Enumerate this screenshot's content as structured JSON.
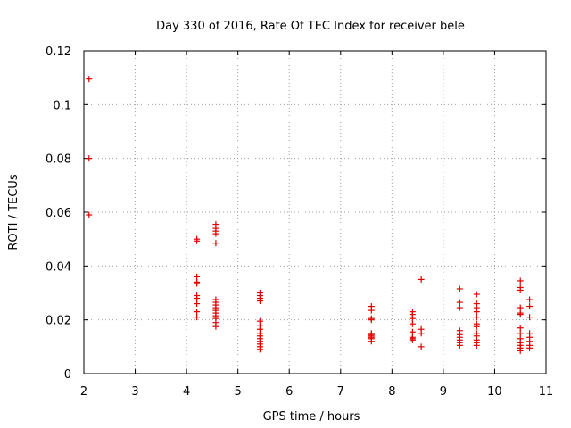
{
  "chart_data": {
    "type": "scatter",
    "title": "Day 330 of 2016, Rate Of TEC Index for receiver bele",
    "xlabel": "GPS time / hours",
    "ylabel": "ROTI / TECUs",
    "xlim": [
      2,
      11
    ],
    "ylim": [
      0,
      0.12
    ],
    "x_ticks": [
      "2",
      "3",
      "4",
      "5",
      "6",
      "7",
      "8",
      "9",
      "10",
      "11"
    ],
    "y_ticks": [
      "0",
      "0.02",
      "0.04",
      "0.06",
      "0.08",
      "0.1",
      "0.12"
    ],
    "grid": true,
    "marker": "+",
    "color": "#e00000",
    "series": [
      {
        "points": [
          [
            2.1,
            0.1095
          ],
          [
            2.1,
            0.08
          ],
          [
            2.1,
            0.059
          ],
          [
            4.2,
            0.05
          ],
          [
            4.2,
            0.0493
          ],
          [
            4.2,
            0.036
          ],
          [
            4.2,
            0.034
          ],
          [
            4.2,
            0.0335
          ],
          [
            4.2,
            0.029
          ],
          [
            4.2,
            0.028
          ],
          [
            4.2,
            0.026
          ],
          [
            4.2,
            0.023
          ],
          [
            4.2,
            0.021
          ],
          [
            4.57,
            0.0555
          ],
          [
            4.57,
            0.054
          ],
          [
            4.57,
            0.053
          ],
          [
            4.57,
            0.052
          ],
          [
            4.57,
            0.0485
          ],
          [
            4.57,
            0.0275
          ],
          [
            4.57,
            0.0265
          ],
          [
            4.57,
            0.0255
          ],
          [
            4.57,
            0.0245
          ],
          [
            4.57,
            0.0235
          ],
          [
            4.57,
            0.0225
          ],
          [
            4.57,
            0.0215
          ],
          [
            4.57,
            0.0205
          ],
          [
            4.57,
            0.019
          ],
          [
            4.57,
            0.0175
          ],
          [
            5.43,
            0.03
          ],
          [
            5.43,
            0.029
          ],
          [
            5.43,
            0.028
          ],
          [
            5.43,
            0.027
          ],
          [
            5.43,
            0.0195
          ],
          [
            5.43,
            0.018
          ],
          [
            5.43,
            0.0165
          ],
          [
            5.43,
            0.015
          ],
          [
            5.43,
            0.014
          ],
          [
            5.43,
            0.013
          ],
          [
            5.43,
            0.012
          ],
          [
            5.43,
            0.011
          ],
          [
            5.43,
            0.01
          ],
          [
            5.43,
            0.009
          ],
          [
            7.6,
            0.025
          ],
          [
            7.6,
            0.0235
          ],
          [
            7.6,
            0.0205
          ],
          [
            7.6,
            0.02
          ],
          [
            7.6,
            0.015
          ],
          [
            7.6,
            0.0145
          ],
          [
            7.6,
            0.014
          ],
          [
            7.6,
            0.0135
          ],
          [
            7.6,
            0.013
          ],
          [
            7.6,
            0.012
          ],
          [
            8.4,
            0.023
          ],
          [
            8.4,
            0.022
          ],
          [
            8.4,
            0.0205
          ],
          [
            8.4,
            0.0185
          ],
          [
            8.4,
            0.0155
          ],
          [
            8.4,
            0.0135
          ],
          [
            8.4,
            0.013
          ],
          [
            8.4,
            0.0125
          ],
          [
            8.57,
            0.035
          ],
          [
            8.57,
            0.0165
          ],
          [
            8.57,
            0.015
          ],
          [
            8.57,
            0.01
          ],
          [
            9.32,
            0.0315
          ],
          [
            9.32,
            0.0265
          ],
          [
            9.32,
            0.0245
          ],
          [
            9.32,
            0.016
          ],
          [
            9.32,
            0.0145
          ],
          [
            9.32,
            0.0135
          ],
          [
            9.32,
            0.0125
          ],
          [
            9.32,
            0.0115
          ],
          [
            9.32,
            0.0105
          ],
          [
            9.65,
            0.0295
          ],
          [
            9.65,
            0.026
          ],
          [
            9.65,
            0.0245
          ],
          [
            9.65,
            0.023
          ],
          [
            9.65,
            0.021
          ],
          [
            9.65,
            0.0185
          ],
          [
            9.65,
            0.0175
          ],
          [
            9.65,
            0.015
          ],
          [
            9.65,
            0.014
          ],
          [
            9.65,
            0.0125
          ],
          [
            9.65,
            0.0115
          ],
          [
            9.65,
            0.0105
          ],
          [
            10.5,
            0.0345
          ],
          [
            10.5,
            0.032
          ],
          [
            10.5,
            0.031
          ],
          [
            10.5,
            0.0245
          ],
          [
            10.5,
            0.0225
          ],
          [
            10.5,
            0.022
          ],
          [
            10.5,
            0.017
          ],
          [
            10.5,
            0.015
          ],
          [
            10.5,
            0.013
          ],
          [
            10.5,
            0.0115
          ],
          [
            10.5,
            0.0105
          ],
          [
            10.5,
            0.0095
          ],
          [
            10.5,
            0.0085
          ],
          [
            10.68,
            0.0275
          ],
          [
            10.68,
            0.025
          ],
          [
            10.68,
            0.021
          ],
          [
            10.68,
            0.015
          ],
          [
            10.68,
            0.0135
          ],
          [
            10.68,
            0.012
          ],
          [
            10.68,
            0.0105
          ],
          [
            10.68,
            0.0095
          ]
        ]
      }
    ]
  }
}
